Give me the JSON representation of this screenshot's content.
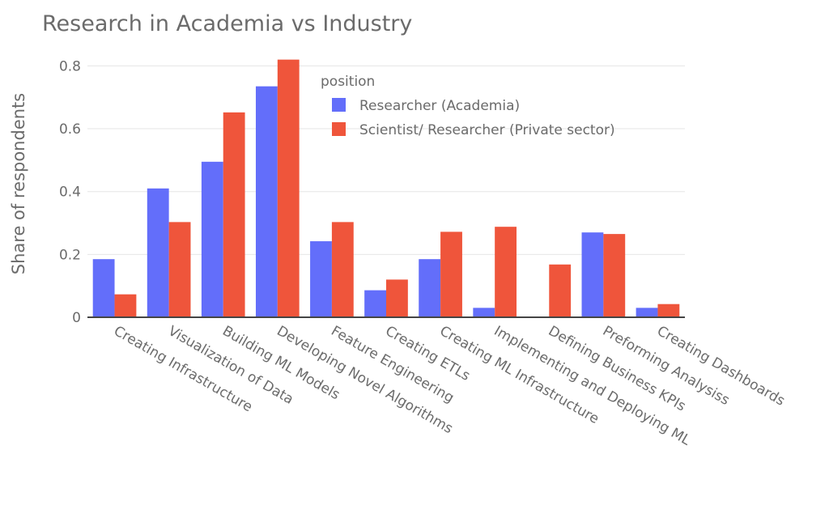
{
  "chart_data": {
    "type": "bar",
    "title": "Research in Academia vs Industry",
    "xlabel": "",
    "ylabel": "Share of respondents",
    "ylim": [
      0,
      0.85
    ],
    "yticks": [
      0,
      0.2,
      0.4,
      0.6,
      0.8
    ],
    "ytick_labels": [
      "0",
      "0.2",
      "0.4",
      "0.6",
      "0.8"
    ],
    "grid": true,
    "legend": {
      "title": "position",
      "placement": "top-right"
    },
    "categories": [
      "Creating Infrastructure",
      "Visualization of Data",
      "Building ML Models",
      "Developing Novel Algorithms",
      "Feature Engineering",
      "Creating ETLs",
      "Creating ML Infrastructure",
      "Implementing and Deploying ML",
      "Defining Business KPIs",
      "Preforming Analysiss",
      "Creating Dashboards"
    ],
    "series": [
      {
        "name": "Researcher (Academia)",
        "color": "#636efa",
        "values": [
          0.185,
          0.41,
          0.495,
          0.735,
          0.242,
          0.086,
          0.185,
          0.03,
          0.0,
          0.27,
          0.03
        ]
      },
      {
        "name": "Scientist/ Researcher (Private sector)",
        "color": "#ef553b",
        "values": [
          0.073,
          0.303,
          0.652,
          0.82,
          0.303,
          0.12,
          0.272,
          0.288,
          0.168,
          0.265,
          0.042
        ]
      }
    ]
  }
}
